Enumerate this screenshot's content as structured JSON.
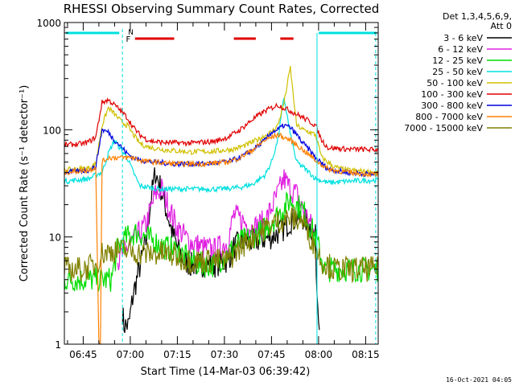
{
  "chart_data": {
    "type": "line",
    "title": "RHESSI Observing Summary Count Rates, Corrected",
    "xlabel": "Start Time (14-Mar-03 06:39:42)",
    "ylabel": "Corrected Count Rate (s⁻¹ detector⁻¹)",
    "y_scale": "log",
    "ylim": [
      1,
      1000
    ],
    "xlim_minutes_from_0639": [
      0,
      100
    ],
    "x_ticks": [
      "06:45",
      "07:00",
      "07:15",
      "07:30",
      "07:45",
      "08:00",
      "08:15"
    ],
    "x_tick_minutes": [
      6,
      21,
      36,
      51,
      66,
      81,
      96
    ],
    "y_ticks": [
      "1",
      "10",
      "100",
      "1000"
    ],
    "y_tick_values": [
      1,
      10,
      100,
      1000
    ],
    "legend_header": [
      "Det 1,3,4,5,6,9,",
      "Att 0"
    ],
    "legend_placement": "right",
    "x_unit": "minutes after 06:39",
    "series": [
      {
        "name": "3 - 6 keV",
        "color": "#000000",
        "x": [
          0,
          17,
          18.5,
          19,
          20.5,
          22,
          26,
          27.5,
          29,
          30.5,
          32,
          34,
          36,
          38,
          40,
          44,
          48,
          52,
          54,
          56,
          60,
          66,
          70,
          72,
          74,
          76,
          78,
          80,
          80.5,
          81.5,
          83
        ],
        "y": [
          null,
          null,
          2,
          1.5,
          1.5,
          3,
          9,
          22,
          40,
          30,
          20,
          12,
          8,
          6,
          5.5,
          5.5,
          5.5,
          6,
          8,
          9,
          9,
          10,
          12,
          14,
          15,
          15,
          13,
          10,
          3,
          1.5,
          null
        ]
      },
      {
        "name": "6 - 12 keV",
        "color": "#e020e0",
        "x": [
          17,
          20,
          23,
          26,
          29,
          31,
          33,
          36,
          40,
          44,
          48,
          52,
          54,
          57,
          60,
          64,
          68,
          70,
          72,
          74,
          76,
          78,
          80
        ],
        "y": [
          6,
          8,
          10,
          13,
          25,
          28,
          20,
          12,
          9,
          8,
          7.5,
          9,
          16,
          14,
          12,
          14,
          25,
          35,
          28,
          25,
          18,
          14,
          10
        ]
      },
      {
        "name": "12 - 25 keV",
        "color": "#00dd00",
        "x": [
          0,
          10,
          12,
          15,
          17,
          20,
          23,
          26,
          29,
          32,
          36,
          40,
          44,
          48,
          52,
          56,
          60,
          64,
          68,
          72,
          76,
          80,
          83,
          90,
          100
        ],
        "y": [
          4,
          4,
          4,
          4,
          8,
          10,
          11,
          10,
          9,
          8,
          7.5,
          6,
          5.5,
          5.5,
          7,
          9,
          10,
          12,
          16,
          22,
          18,
          10,
          5,
          5,
          5
        ]
      },
      {
        "name": "25 - 50 keV",
        "color": "#00e0e0",
        "x": [
          0,
          8,
          10,
          12,
          14,
          16,
          18,
          20,
          22,
          24,
          30,
          40,
          50,
          56,
          60,
          64,
          66,
          68,
          70,
          72,
          74,
          76,
          78,
          80,
          84,
          90,
          100
        ],
        "y": [
          33,
          35,
          38,
          40,
          60,
          80,
          65,
          55,
          40,
          30,
          28,
          28,
          28,
          29,
          31,
          38,
          50,
          80,
          200,
          90,
          50,
          45,
          40,
          35,
          32,
          33,
          34
        ]
      },
      {
        "name": "50 - 100 keV",
        "color": "#d0c000",
        "x": [
          0,
          8,
          10,
          12,
          14,
          16,
          18,
          20,
          22,
          24,
          26,
          28,
          32,
          40,
          48,
          54,
          58,
          62,
          66,
          68,
          70,
          72,
          73,
          74,
          76,
          78,
          80,
          82,
          86,
          90,
          100
        ],
        "y": [
          42,
          44,
          48,
          110,
          160,
          140,
          120,
          110,
          90,
          75,
          70,
          68,
          65,
          62,
          63,
          66,
          72,
          82,
          95,
          110,
          180,
          380,
          200,
          110,
          100,
          95,
          90,
          55,
          45,
          42,
          40
        ]
      },
      {
        "name": "100 - 300 keV",
        "color": "#e00000",
        "x": [
          0,
          6,
          8,
          10,
          12,
          14,
          16,
          18,
          20,
          22,
          24,
          26,
          28,
          32,
          40,
          48,
          52,
          56,
          60,
          64,
          68,
          72,
          76,
          78,
          80,
          82,
          84,
          90,
          100
        ],
        "y": [
          72,
          74,
          78,
          85,
          180,
          190,
          170,
          150,
          130,
          105,
          90,
          82,
          78,
          76,
          75,
          78,
          85,
          100,
          125,
          150,
          170,
          150,
          130,
          120,
          110,
          80,
          68,
          66,
          65
        ]
      },
      {
        "name": "300 - 800 keV",
        "color": "#0000e0",
        "x": [
          0,
          8,
          10,
          12,
          14,
          16,
          18,
          20,
          22,
          24,
          28,
          36,
          44,
          52,
          56,
          60,
          64,
          66,
          68,
          70,
          72,
          74,
          76,
          78,
          80,
          84,
          90,
          100
        ],
        "y": [
          40,
          42,
          45,
          100,
          95,
          80,
          70,
          60,
          55,
          52,
          50,
          48,
          48,
          50,
          55,
          65,
          80,
          95,
          100,
          110,
          105,
          90,
          75,
          65,
          55,
          43,
          40,
          38
        ]
      },
      {
        "name": "800 - 7000 keV",
        "color": "#ff8000",
        "x": [
          0,
          8,
          10,
          11,
          11.5,
          12,
          14,
          16,
          18,
          20,
          22,
          24,
          28,
          36,
          44,
          52,
          56,
          60,
          64,
          68,
          72,
          76,
          80,
          84,
          90,
          100
        ],
        "y": [
          40,
          42,
          45,
          1,
          1,
          50,
          55,
          55,
          55,
          55,
          55,
          52,
          50,
          48,
          48,
          50,
          55,
          65,
          80,
          90,
          80,
          65,
          52,
          43,
          40,
          38
        ]
      },
      {
        "name": "7000 - 15000 keV",
        "color": "#808000",
        "x": [
          0,
          6,
          10,
          12,
          16,
          18,
          20,
          24,
          28,
          32,
          36,
          40,
          44,
          48,
          52,
          56,
          60,
          64,
          68,
          72,
          76,
          80,
          82,
          86,
          90,
          100
        ],
        "y": [
          5,
          5,
          5.5,
          7,
          7.5,
          7.5,
          7.5,
          7,
          7,
          7,
          6.5,
          6,
          6,
          6,
          6,
          8,
          10,
          12,
          14,
          15,
          14,
          8,
          6,
          5,
          5,
          5
        ]
      }
    ],
    "flags": {
      "N_label": "N",
      "F_label": "F"
    },
    "footer_stamp": "16-Oct-2021 04:05"
  }
}
